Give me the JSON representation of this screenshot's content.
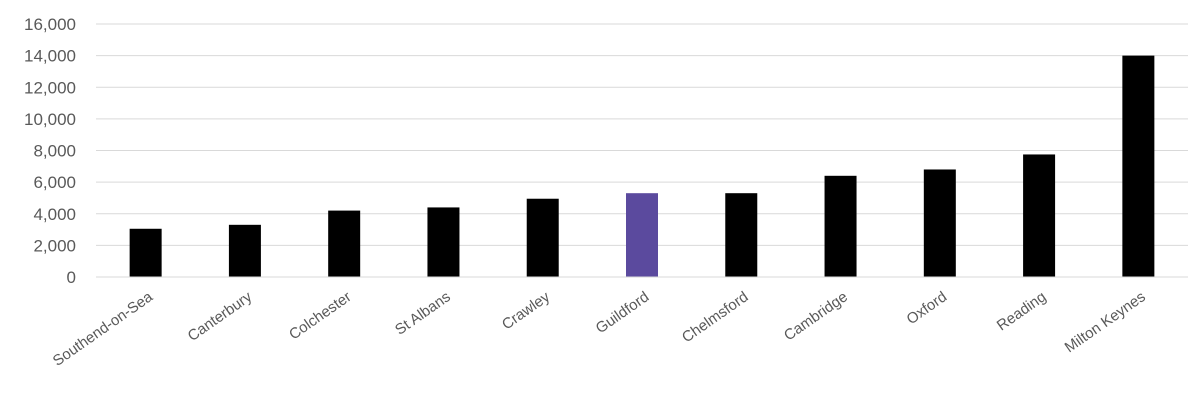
{
  "chart_data": {
    "type": "bar",
    "title": "",
    "xlabel": "",
    "ylabel": "",
    "categories": [
      "Southend-on-Sea",
      "Canterbury",
      "Colchester",
      "St Albans",
      "Crawley",
      "Guildford",
      "Chelmsford",
      "Cambridge",
      "Oxford",
      "Reading",
      "Milton Keynes"
    ],
    "values": [
      3050,
      3300,
      4200,
      4400,
      4950,
      5300,
      5300,
      6400,
      6800,
      7750,
      14000
    ],
    "ylim": [
      0,
      16000
    ],
    "yticks": [
      0,
      2000,
      4000,
      6000,
      8000,
      10000,
      12000,
      14000,
      16000
    ],
    "ytick_labels": [
      "0",
      "2,000",
      "4,000",
      "6,000",
      "8,000",
      "10,000",
      "12,000",
      "14,000",
      "16,000"
    ],
    "grid": true,
    "legend": "none",
    "colors": {
      "default_bar": "#000000",
      "highlight_bar": "#5b4a9e",
      "gridline": "#d9d9d9",
      "text": "#595959"
    },
    "highlight_category": "Guildford"
  }
}
